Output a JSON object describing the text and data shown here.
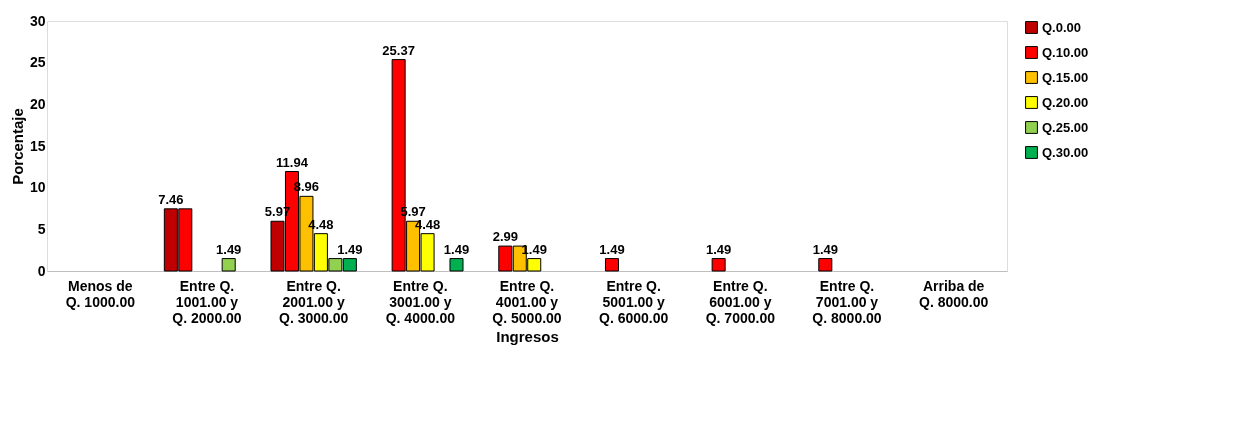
{
  "chart_data": {
    "type": "bar",
    "xlabel": "Ingresos",
    "ylabel": "Porcentaje",
    "categories": [
      "Menos de Q. 1000.00",
      "Entre Q. 1001.00 y Q. 2000.00",
      "Entre Q. 2001.00 y Q. 3000.00",
      "Entre Q. 3001.00 y Q. 4000.00",
      "Entre Q. 4001.00 y Q. 5000.00",
      "Entre Q. 5001.00 y Q. 6000.00",
      "Entre Q. 6001.00 y Q. 7000.00",
      "Entre Q. 7001.00 y Q. 8000.00",
      "Arriba de Q. 8000.00"
    ],
    "series": [
      {
        "name": "Q.0.00",
        "color": "#c00000",
        "values": [
          null,
          7.46,
          5.97,
          null,
          null,
          null,
          null,
          null,
          null
        ],
        "value_labels": [
          null,
          "7.46",
          "5.97",
          null,
          null,
          null,
          null,
          null,
          null
        ]
      },
      {
        "name": "Q.10.00",
        "color": "#ff0000",
        "values": [
          null,
          7.46,
          11.94,
          25.37,
          2.99,
          1.49,
          1.49,
          1.49,
          null
        ],
        "value_labels": [
          null,
          null,
          "11.94",
          "25.37",
          "2.99",
          "1.49",
          "1.49",
          "1.49",
          null
        ]
      },
      {
        "name": "Q.15.00",
        "color": "#ffc000",
        "values": [
          null,
          null,
          8.96,
          5.97,
          2.99,
          null,
          null,
          null,
          null
        ],
        "value_labels": [
          null,
          null,
          "8.96",
          "5.97",
          null,
          null,
          null,
          null,
          null
        ]
      },
      {
        "name": "Q.20.00",
        "color": "#ffff00",
        "values": [
          null,
          null,
          4.48,
          4.48,
          1.49,
          null,
          null,
          null,
          null
        ],
        "value_labels": [
          null,
          null,
          "4.48",
          "4.48",
          "1.49",
          null,
          null,
          null,
          null
        ]
      },
      {
        "name": "Q.25.00",
        "color": "#92d050",
        "values": [
          null,
          1.49,
          1.49,
          null,
          null,
          null,
          null,
          null,
          null
        ],
        "value_labels": [
          null,
          "1.49",
          null,
          null,
          null,
          null,
          null,
          null,
          null
        ]
      },
      {
        "name": "Q.30.00",
        "color": "#00b050",
        "values": [
          null,
          null,
          1.49,
          1.49,
          null,
          null,
          null,
          null,
          null
        ],
        "value_labels": [
          null,
          null,
          "1.49",
          "1.49",
          null,
          null,
          null,
          null,
          null
        ]
      }
    ],
    "ylim": [
      0,
      30
    ],
    "yticks": [
      0,
      5,
      10,
      15,
      20,
      25,
      30
    ],
    "grid": false,
    "legend": "right"
  }
}
